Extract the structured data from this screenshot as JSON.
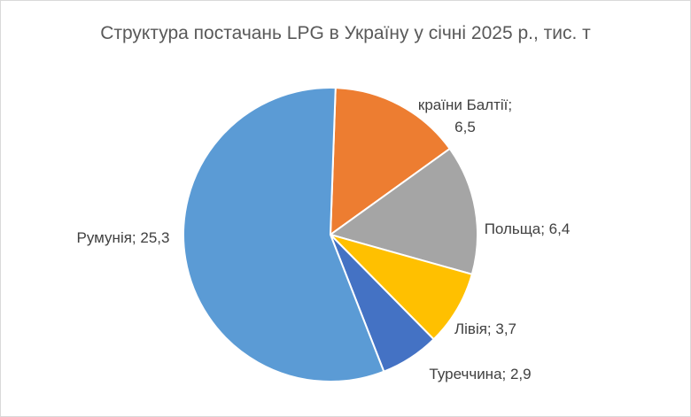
{
  "chart_data": {
    "type": "pie",
    "title": "Структура постачань LPG в Україну у січні 2025 р., тис. т",
    "categories": [
      "країни Балтії",
      "Польща",
      "Лівія",
      "Туреччина",
      "Румунія"
    ],
    "values": [
      6.5,
      6.4,
      3.7,
      2.9,
      25.3
    ],
    "data_labels": [
      [
        "країни Балтії;",
        "6,5"
      ],
      [
        "Польща; 6,4"
      ],
      [
        "Лівія; 3,7"
      ],
      [
        "Туреччина; 2,9"
      ],
      [
        "Румунія; 25,3"
      ]
    ],
    "colors": [
      "#ED7D31",
      "#A5A5A5",
      "#FFC000",
      "#4472C4",
      "#5B9BD5"
    ],
    "start_angle_deg": 2,
    "direction": "clockwise",
    "legend": "none"
  }
}
